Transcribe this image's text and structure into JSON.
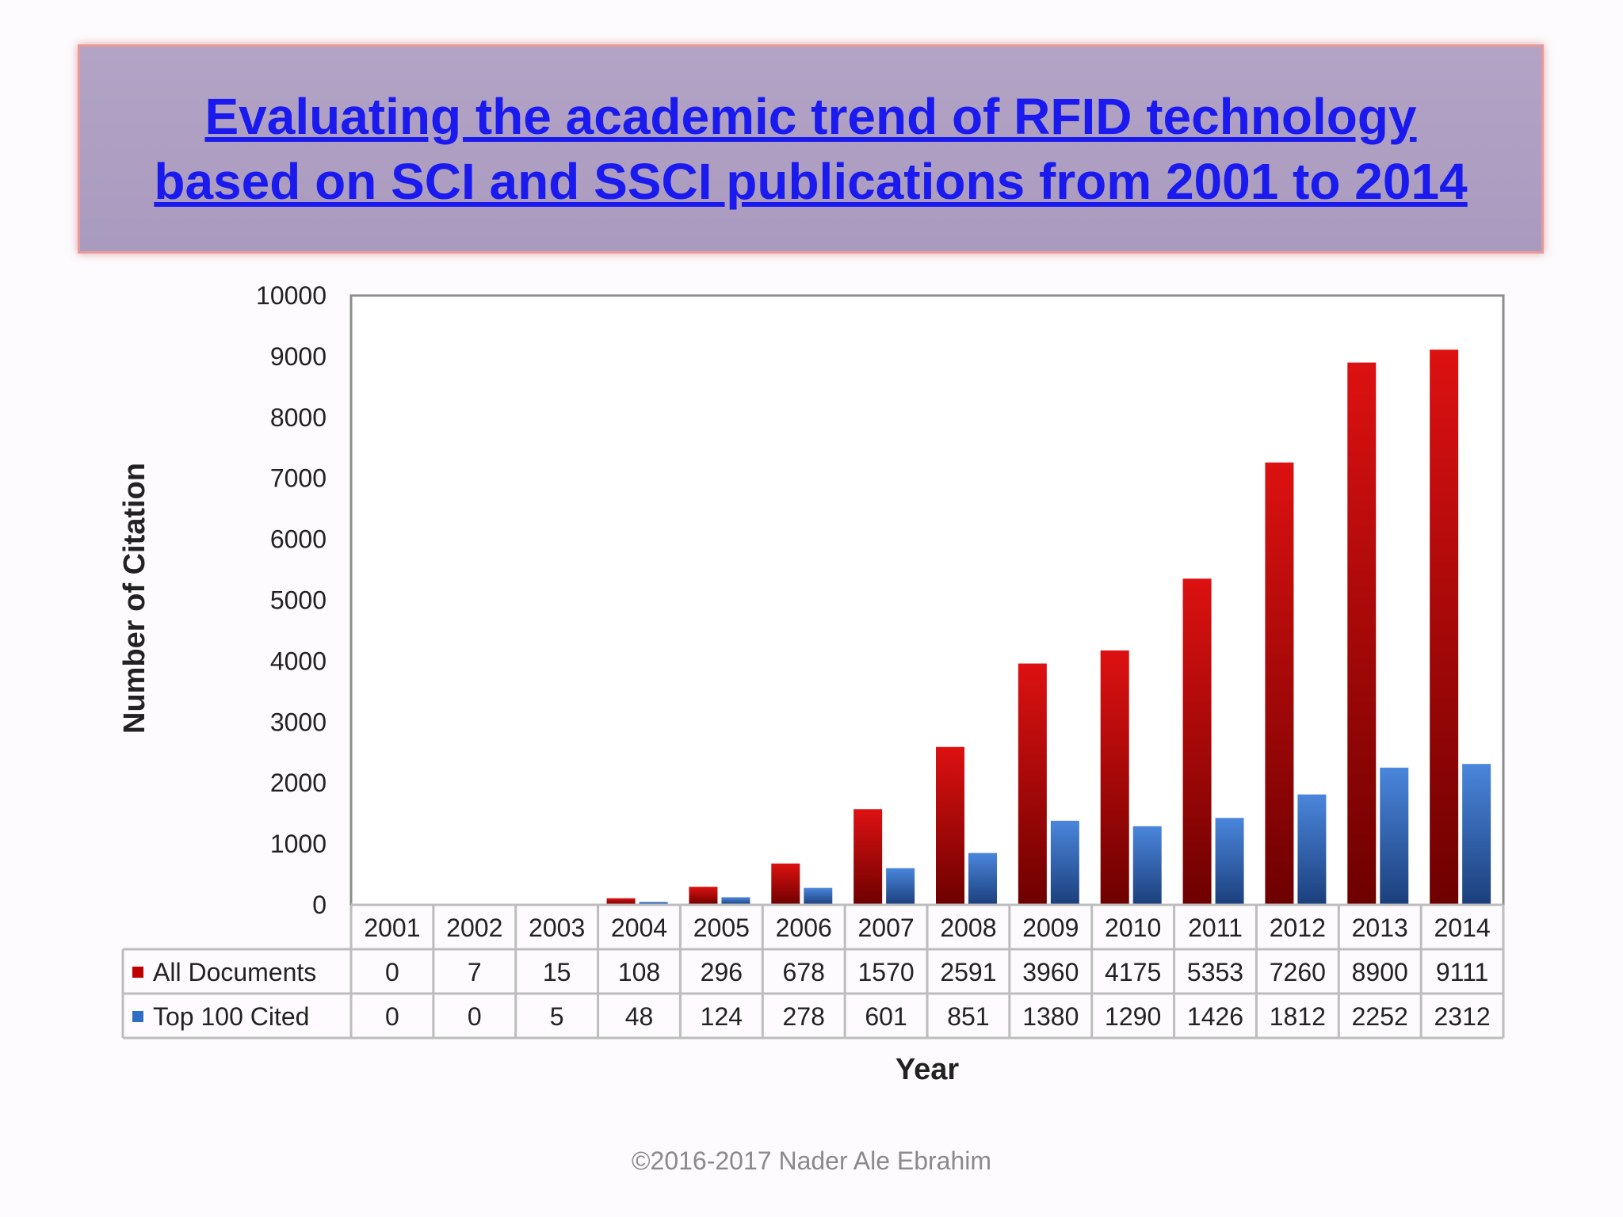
{
  "title_lines": [
    "Evaluating the academic trend of RFID technology",
    "based on SCI and SSCI publications from 2001 to 2014"
  ],
  "footer": "©2016-2017  Nader Ale Ebrahim",
  "chart_data": {
    "type": "bar",
    "categories": [
      "2001",
      "2002",
      "2003",
      "2004",
      "2005",
      "2006",
      "2007",
      "2008",
      "2009",
      "2010",
      "2011",
      "2012",
      "2013",
      "2014"
    ],
    "series": [
      {
        "name": "All Documents",
        "color": "#c00000",
        "values": [
          0,
          7,
          15,
          108,
          296,
          678,
          1570,
          2591,
          3960,
          4175,
          5353,
          7260,
          8900,
          9111
        ]
      },
      {
        "name": "Top 100 Cited",
        "color": "#2e6dc4",
        "values": [
          0,
          0,
          5,
          48,
          124,
          278,
          601,
          851,
          1380,
          1290,
          1426,
          1812,
          2252,
          2312
        ]
      }
    ],
    "y_ticks": [
      "0",
      "1000",
      "2000",
      "3000",
      "4000",
      "5000",
      "6000",
      "7000",
      "8000",
      "9000",
      "10000"
    ],
    "ylim": [
      0,
      10000
    ],
    "xlabel": "Year",
    "ylabel": "Number of Citation",
    "legend": "data-table"
  }
}
